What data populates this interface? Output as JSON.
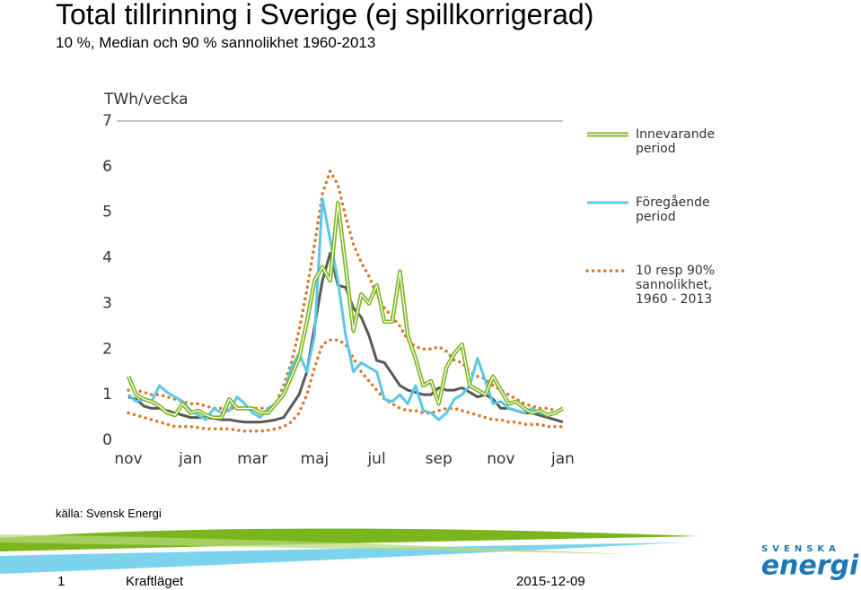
{
  "header": {
    "title": "Total tillrinning i Sverige (ej spillkorrigerad)",
    "subtitle": "10 %, Median och 90 % sannolikhet 1960-2013"
  },
  "chart_data": {
    "type": "line",
    "y_label": "TWh/vecka",
    "categories": [
      "nov",
      null,
      null,
      null,
      null,
      null,
      null,
      null,
      "jan",
      null,
      null,
      null,
      null,
      null,
      null,
      null,
      "mar",
      null,
      null,
      null,
      null,
      null,
      null,
      null,
      "maj",
      null,
      null,
      null,
      null,
      null,
      null,
      null,
      "jul",
      null,
      null,
      null,
      null,
      null,
      null,
      null,
      "sep",
      null,
      null,
      null,
      null,
      null,
      null,
      null,
      "nov",
      null,
      null,
      null,
      null,
      null,
      null,
      null,
      "jan"
    ],
    "ylim": [
      0,
      7
    ],
    "yticks": [
      0,
      1,
      2,
      3,
      4,
      5,
      6,
      7
    ],
    "series": [
      {
        "color": "#d87a2c",
        "style": "dotted",
        "values": [
          0.6,
          0.55,
          0.5,
          0.45,
          0.4,
          0.35,
          0.3,
          0.3,
          0.3,
          0.28,
          0.25,
          0.25,
          0.25,
          0.25,
          0.22,
          0.2,
          0.2,
          0.2,
          0.22,
          0.25,
          0.3,
          0.4,
          0.6,
          1.0,
          1.6,
          2.1,
          2.2,
          2.2,
          2.1,
          1.8,
          1.5,
          1.3,
          1.1,
          0.9,
          0.8,
          0.7,
          0.65,
          0.65,
          0.6,
          0.6,
          0.65,
          0.7,
          0.7,
          0.65,
          0.6,
          0.55,
          0.5,
          0.45,
          0.45,
          0.4,
          0.4,
          0.35,
          0.35,
          0.35,
          0.3,
          0.3,
          0.3
        ]
      },
      {
        "name": "10 resp 90% sannolikhet, 1960 - 2013",
        "color": "#d87a2c",
        "style": "dotted",
        "values": [
          1.1,
          1.1,
          1.05,
          1.0,
          1.0,
          0.95,
          0.9,
          0.85,
          0.8,
          0.8,
          0.75,
          0.7,
          0.7,
          0.7,
          0.7,
          0.7,
          0.7,
          0.7,
          0.7,
          0.8,
          1.2,
          1.7,
          2.4,
          3.3,
          4.3,
          5.4,
          5.9,
          5.6,
          4.9,
          4.3,
          3.9,
          3.6,
          3.2,
          2.9,
          2.7,
          2.5,
          2.2,
          2.05,
          2.0,
          2.0,
          2.05,
          1.95,
          1.75,
          1.7,
          1.5,
          1.4,
          1.35,
          1.2,
          1.1,
          1.0,
          0.9,
          0.8,
          0.75,
          0.7,
          0.7,
          0.65,
          0.6
        ]
      },
      {
        "color": "#595959",
        "style": "solid",
        "values": [
          0.95,
          0.9,
          0.75,
          0.7,
          0.7,
          0.65,
          0.6,
          0.55,
          0.5,
          0.5,
          0.5,
          0.48,
          0.45,
          0.45,
          0.42,
          0.4,
          0.4,
          0.4,
          0.42,
          0.45,
          0.5,
          0.75,
          1.0,
          1.5,
          2.5,
          3.5,
          4.1,
          3.4,
          3.35,
          2.9,
          2.7,
          2.3,
          1.75,
          1.7,
          1.45,
          1.2,
          1.1,
          1.05,
          1.0,
          1.0,
          1.15,
          1.1,
          1.1,
          1.15,
          1.05,
          0.95,
          1.0,
          0.9,
          0.7,
          0.7,
          0.65,
          0.6,
          0.6,
          0.55,
          0.5,
          0.45,
          0.4
        ]
      },
      {
        "name": "Föregående period",
        "color": "#5bc8e8",
        "style": "solid",
        "values": [
          1.0,
          0.85,
          0.9,
          0.85,
          1.2,
          1.05,
          0.95,
          0.85,
          0.65,
          0.55,
          0.45,
          0.7,
          0.6,
          0.65,
          0.95,
          0.8,
          0.6,
          0.5,
          0.7,
          0.8,
          1.0,
          1.6,
          1.9,
          1.5,
          2.3,
          5.3,
          4.4,
          3.5,
          2.3,
          1.5,
          1.7,
          1.6,
          1.5,
          0.9,
          0.85,
          1.0,
          0.8,
          1.2,
          0.65,
          0.6,
          0.45,
          0.6,
          0.9,
          1.0,
          1.2,
          1.8,
          1.3,
          0.8,
          0.85,
          0.7,
          0.65,
          0.6,
          0.7,
          0.6,
          0.55,
          0.6,
          0.7
        ]
      },
      {
        "name": "Innevarande period",
        "color": "#7ab51d",
        "style": "double",
        "values": [
          1.4,
          1.0,
          0.9,
          0.85,
          0.75,
          0.6,
          0.55,
          0.8,
          0.6,
          0.65,
          0.55,
          0.5,
          0.5,
          0.9,
          0.7,
          0.7,
          0.7,
          0.6,
          0.6,
          0.8,
          1.0,
          1.4,
          1.8,
          2.6,
          3.5,
          3.8,
          3.5,
          5.2,
          3.8,
          2.4,
          3.2,
          3.0,
          3.4,
          2.6,
          2.6,
          3.7,
          2.3,
          1.8,
          1.2,
          1.3,
          0.8,
          1.6,
          1.9,
          2.1,
          1.2,
          1.1,
          1.0,
          1.4,
          1.1,
          0.8,
          0.85,
          0.7,
          0.6,
          0.65,
          0.55,
          0.6,
          0.7
        ]
      }
    ]
  },
  "source": "källa: Svensk Energi",
  "logo": {
    "top": "SVENSKA",
    "bottom": "energi"
  },
  "footer": {
    "page": "1",
    "section": "Kraftläget",
    "date": "2015-12-09"
  }
}
